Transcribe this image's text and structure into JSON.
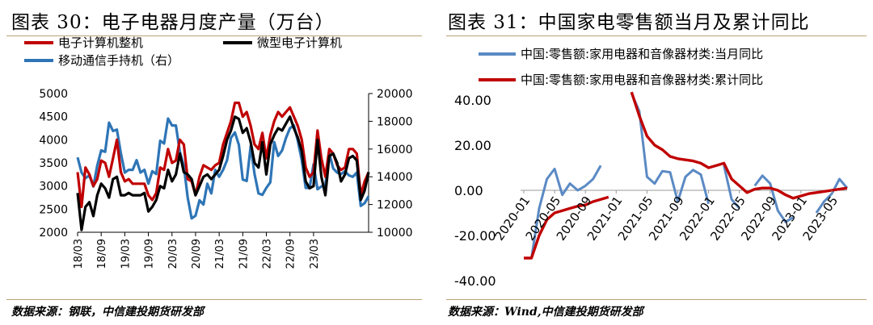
{
  "figures": [
    {
      "title": "图表 30：电子电器月度产量（万台）",
      "source": "数据来源：钢联，中信建投期货研发部"
    },
    {
      "title": "图表 31：中国家电零售额当月及累计同比",
      "source": "数据来源：Wind,中信建投期货研发部"
    }
  ],
  "chart_data": [
    {
      "type": "line",
      "title": "",
      "xlabel": "",
      "ylabel": "",
      "x_tick_labels": [
        "18/03",
        "18/09",
        "19/03",
        "19/09",
        "20/03",
        "20/09",
        "21/03",
        "21/09",
        "22/03",
        "22/09",
        "23/03"
      ],
      "ylim_left": [
        2000,
        5000
      ],
      "yticks_left": [
        2000,
        2500,
        3000,
        3500,
        4000,
        4500,
        5000
      ],
      "ylim_right": [
        10000,
        20000
      ],
      "yticks_right": [
        10000,
        12000,
        14000,
        16000,
        18000,
        20000
      ],
      "legend_position": "top-left",
      "series": [
        {
          "name": "电子计算机整机",
          "axis": "left",
          "color": "#c00000",
          "values": [
            3300,
            2550,
            3400,
            3250,
            3000,
            3150,
            3550,
            3500,
            3200,
            3600,
            4000,
            3300,
            3100,
            3150,
            3050,
            3050,
            3050,
            3050,
            2800,
            2700,
            2850,
            3400,
            3350,
            3800,
            3500,
            3550,
            4000,
            3900,
            3150,
            3100,
            2800,
            3200,
            3450,
            3400,
            3350,
            3450,
            3500,
            3900,
            4150,
            4400,
            4800,
            4800,
            4500,
            4600,
            4300,
            3900,
            3800,
            4150,
            3600,
            4100,
            4400,
            4600,
            4500,
            4600,
            4700,
            4500,
            4300,
            4000,
            3400,
            3200,
            3300,
            4200,
            3600,
            3200,
            3800,
            3700,
            3450,
            3350,
            3400,
            3800,
            3800,
            3700,
            2800,
            3100,
            3300
          ]
        },
        {
          "name": "微型电子计算机",
          "axis": "left",
          "color": "#000000",
          "values": [
            2850,
            2050,
            2550,
            2650,
            2350,
            2800,
            3050,
            2950,
            2750,
            3150,
            3200,
            2800,
            2800,
            2850,
            2800,
            2800,
            2800,
            2850,
            2450,
            2550,
            2700,
            3000,
            2950,
            3350,
            3100,
            3250,
            3700,
            3300,
            3250,
            3150,
            2800,
            3000,
            3200,
            3250,
            3150,
            3250,
            3350,
            3650,
            4000,
            4200,
            4500,
            4450,
            4150,
            4250,
            3950,
            3500,
            3400,
            3950,
            3250,
            3900,
            4100,
            4250,
            4200,
            4350,
            4500,
            4250,
            4050,
            3750,
            3100,
            2950,
            3000,
            4000,
            3200,
            2800,
            3650,
            3700,
            3500,
            3100,
            3250,
            3600,
            3650,
            3550,
            2700,
            2900,
            3300
          ]
        },
        {
          "name": "移动通信手持机（右）",
          "axis": "right",
          "color": "#2e75b6",
          "values": [
            15400,
            14300,
            13900,
            14100,
            13300,
            14800,
            15900,
            15800,
            17900,
            17300,
            17400,
            15700,
            14300,
            14500,
            14500,
            15200,
            14300,
            14500,
            13500,
            14400,
            14200,
            16600,
            16400,
            18200,
            17700,
            17700,
            15800,
            14800,
            12500,
            11000,
            11200,
            12300,
            12000,
            13500,
            12800,
            14500,
            14000,
            14500,
            15200,
            16800,
            17200,
            16300,
            13800,
            13700,
            16200,
            14200,
            12800,
            12700,
            13200,
            13600,
            16500,
            15500,
            15900,
            16800,
            17500,
            17700,
            16600,
            15200,
            13200,
            13200,
            14900,
            13100,
            13300,
            13400,
            15700,
            14600,
            14300,
            14200,
            14400,
            14100,
            14000,
            14300,
            11900,
            12100,
            12600
          ]
        }
      ]
    },
    {
      "type": "line",
      "title": "",
      "xlabel": "",
      "ylabel": "",
      "x_tick_labels": [
        "2020-01",
        "2020-05",
        "2020-09",
        "2021-01",
        "2021-05",
        "2021-09",
        "2022-01",
        "2022-05",
        "2022-09",
        "2023-01",
        "2023-05"
      ],
      "x_months": [
        "2020-01",
        "2020-02",
        "2020-03",
        "2020-04",
        "2020-05",
        "2020-06",
        "2020-07",
        "2020-08",
        "2020-09",
        "2020-10",
        "2020-11",
        "2020-12",
        "2021-01",
        "2021-02",
        "2021-03",
        "2021-04",
        "2021-05",
        "2021-06",
        "2021-07",
        "2021-08",
        "2021-09",
        "2021-10",
        "2021-11",
        "2021-12",
        "2022-01",
        "2022-02",
        "2022-03",
        "2022-04",
        "2022-05",
        "2022-06",
        "2022-07",
        "2022-08",
        "2022-09",
        "2022-10",
        "2022-11",
        "2022-12",
        "2023-01",
        "2023-02",
        "2023-03",
        "2023-04",
        "2023-05",
        "2023-06",
        "2023-07"
      ],
      "ylim": [
        -40,
        45
      ],
      "yticks": [
        -40,
        -20,
        0,
        20,
        40
      ],
      "ytick_labels": [
        "-40.00",
        "-20.00",
        "0.00",
        "20.00",
        "40.00"
      ],
      "legend_position": "top",
      "series": [
        {
          "name": "中国:零售额:家用电器和音像器材类:当月同比",
          "color": "#5b8ac4",
          "values": [
            -30,
            -30,
            -8,
            5,
            9.5,
            -2,
            3,
            0,
            2,
            5,
            11,
            null,
            null,
            null,
            43,
            35,
            6,
            3,
            8.5,
            8,
            -5,
            6,
            9,
            7,
            -6,
            null,
            11,
            -4,
            -8,
            null,
            2,
            6.5,
            3,
            -9,
            -14,
            -12,
            null,
            null,
            -10,
            -5,
            -1.5,
            5,
            1
          ]
        },
        {
          "name": "中国:零售额:家用电器和音像器材类:累计同比",
          "color": "#c00000",
          "values": [
            -30,
            -30,
            -20,
            -13,
            -10,
            -9,
            -8,
            -7,
            -6.5,
            -5,
            -4,
            -3,
            null,
            null,
            43.5,
            33,
            24,
            20,
            18,
            15,
            14,
            13.5,
            13,
            12,
            10,
            11,
            12,
            5,
            2,
            -1,
            0.5,
            1,
            1,
            0,
            -2,
            -3.5,
            -2.5,
            -1.5,
            -1,
            -0.5,
            0,
            0.5,
            1
          ]
        }
      ]
    }
  ]
}
